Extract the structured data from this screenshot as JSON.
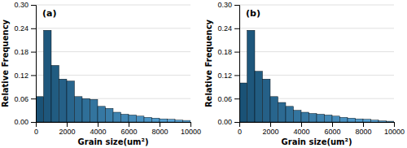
{
  "chart_data": [
    {
      "type": "histogram",
      "xlabel": "Grain size(um²)",
      "ylabel": "Relative Frequency",
      "annotations": [
        "(a)"
      ],
      "bins": [
        0,
        500,
        1000,
        1500,
        2000,
        2500,
        3000,
        3500,
        4000,
        4500,
        5000,
        5500,
        6000,
        6500,
        7000,
        7500,
        8000,
        8500,
        9000,
        9500,
        10000
      ],
      "values": [
        0.065,
        0.235,
        0.145,
        0.11,
        0.105,
        0.065,
        0.06,
        0.058,
        0.04,
        0.035,
        0.025,
        0.02,
        0.018,
        0.015,
        0.012,
        0.01,
        0.008,
        0.007,
        0.005,
        0.004
      ],
      "colors": [
        "#1a5276",
        "#1e577c",
        "#215c81",
        "#256087",
        "#28658d",
        "#2c6a92",
        "#2f6f98",
        "#33749e",
        "#3678a3",
        "#3a7da9",
        "#3d82af",
        "#4187b5",
        "#448bba",
        "#4890c0",
        "#4b95c6",
        "#4f9acb",
        "#529fd1",
        "#56a3d7",
        "#59a8dc",
        "#5dade2"
      ],
      "xlim": [
        0,
        10000
      ],
      "ylim": [
        0,
        0.3
      ],
      "xticks": [
        0,
        2000,
        4000,
        6000,
        8000,
        10000
      ],
      "yticks": [
        {
          "value": 0,
          "label": "0.00"
        },
        0.06,
        0.12,
        0.18,
        0.24,
        {
          "value": 0.3,
          "label": "0.30"
        }
      ],
      "grid": true
    },
    {
      "type": "histogram",
      "xlabel": "Grain size(um²)",
      "ylabel": "Relative Frequency",
      "annotations": [
        "(b)"
      ],
      "bins": [
        0,
        500,
        1000,
        1500,
        2000,
        2500,
        3000,
        3500,
        4000,
        4500,
        5000,
        5500,
        6000,
        6500,
        7000,
        7500,
        8000,
        8500,
        9000,
        9500,
        10000
      ],
      "values": [
        0.1,
        0.235,
        0.13,
        0.11,
        0.065,
        0.05,
        0.04,
        0.03,
        0.025,
        0.022,
        0.02,
        0.018,
        0.015,
        0.012,
        0.01,
        0.008,
        0.007,
        0.005,
        0.003,
        0.002
      ],
      "colors": [
        "#1a5276",
        "#1e577c",
        "#215c81",
        "#256087",
        "#28658d",
        "#2c6a92",
        "#2f6f98",
        "#33749e",
        "#3678a3",
        "#3a7da9",
        "#3d82af",
        "#4187b5",
        "#448bba",
        "#4890c0",
        "#4b95c6",
        "#4f9acb",
        "#529fd1",
        "#56a3d7",
        "#59a8dc",
        "#5dade2"
      ],
      "xlim": [
        0,
        10000
      ],
      "ylim": [
        0,
        0.3
      ],
      "xticks": [
        0,
        2000,
        4000,
        6000,
        8000,
        10000
      ],
      "yticks": [
        {
          "value": 0,
          "label": "0.00"
        },
        0.06,
        0.12,
        0.18,
        0.24,
        {
          "value": 0.3,
          "label": "0.30"
        }
      ],
      "grid": true
    }
  ]
}
